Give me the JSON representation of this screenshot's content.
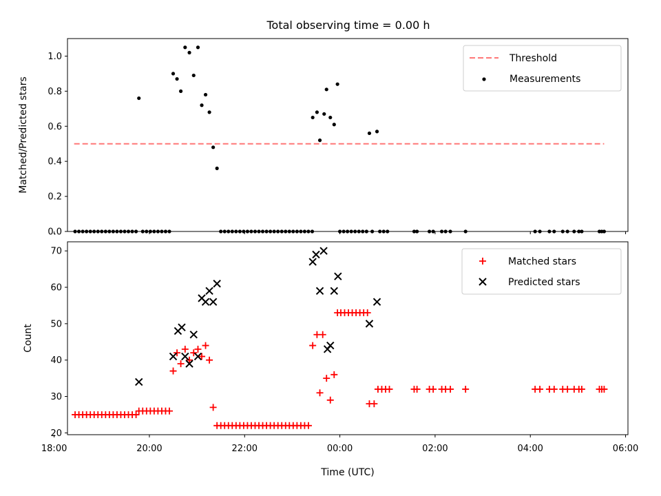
{
  "figure_title": "Total observing time = 0.00 h",
  "colors": {
    "threshold": "#ff7777",
    "measurements": "#000000",
    "matched": "#ff0000",
    "predicted": "#000000"
  },
  "chart_data": [
    {
      "type": "scatter",
      "ylabel": "Matched/Predicted stars",
      "xlim": [
        18.28,
        30.05
      ],
      "ylim": [
        0,
        1.1
      ],
      "yticks": [
        0.0,
        0.2,
        0.4,
        0.6,
        0.8,
        1.0
      ],
      "ytick_labels": [
        "0.0",
        "0.2",
        "0.4",
        "0.6",
        "0.8",
        "1.0"
      ],
      "legend": {
        "placement": "top-right",
        "entries": [
          {
            "label": "Threshold",
            "style": "dashed-line"
          },
          {
            "label": "Measurements",
            "style": "dot"
          }
        ]
      },
      "threshold": {
        "name": "Threshold",
        "y": 0.5,
        "x": [
          18.42,
          29.55
        ]
      },
      "series": [
        {
          "name": "Measurements",
          "points": [
            [
              18.44,
              0
            ],
            [
              18.52,
              0
            ],
            [
              18.6,
              0
            ],
            [
              18.68,
              0
            ],
            [
              18.76,
              0
            ],
            [
              18.84,
              0
            ],
            [
              18.92,
              0
            ],
            [
              19.0,
              0
            ],
            [
              19.08,
              0
            ],
            [
              19.16,
              0
            ],
            [
              19.24,
              0
            ],
            [
              19.32,
              0
            ],
            [
              19.4,
              0
            ],
            [
              19.48,
              0
            ],
            [
              19.56,
              0
            ],
            [
              19.64,
              0
            ],
            [
              19.72,
              0
            ],
            [
              19.78,
              0.76
            ],
            [
              19.86,
              0
            ],
            [
              19.94,
              0
            ],
            [
              20.02,
              0
            ],
            [
              20.1,
              0
            ],
            [
              20.18,
              0
            ],
            [
              20.26,
              0
            ],
            [
              20.34,
              0
            ],
            [
              20.42,
              0
            ],
            [
              20.5,
              0.9
            ],
            [
              20.58,
              0.87
            ],
            [
              20.66,
              0.8
            ],
            [
              20.75,
              1.05
            ],
            [
              20.84,
              1.02
            ],
            [
              20.93,
              0.89
            ],
            [
              21.02,
              1.05
            ],
            [
              21.1,
              0.72
            ],
            [
              21.18,
              0.78
            ],
            [
              21.26,
              0.68
            ],
            [
              21.34,
              0.48
            ],
            [
              21.42,
              0.36
            ],
            [
              21.5,
              0
            ],
            [
              21.58,
              0
            ],
            [
              21.66,
              0
            ],
            [
              21.74,
              0
            ],
            [
              21.82,
              0
            ],
            [
              21.9,
              0
            ],
            [
              21.98,
              0
            ],
            [
              22.06,
              0
            ],
            [
              22.14,
              0
            ],
            [
              22.22,
              0
            ],
            [
              22.3,
              0
            ],
            [
              22.38,
              0
            ],
            [
              22.46,
              0
            ],
            [
              22.54,
              0
            ],
            [
              22.62,
              0
            ],
            [
              22.7,
              0
            ],
            [
              22.78,
              0
            ],
            [
              22.86,
              0
            ],
            [
              22.94,
              0
            ],
            [
              23.02,
              0
            ],
            [
              23.1,
              0
            ],
            [
              23.18,
              0
            ],
            [
              23.26,
              0
            ],
            [
              23.34,
              0
            ],
            [
              23.42,
              0
            ],
            [
              23.43,
              0.65
            ],
            [
              23.52,
              0.68
            ],
            [
              23.58,
              0.52
            ],
            [
              23.67,
              0.67
            ],
            [
              23.72,
              0.81
            ],
            [
              23.8,
              0.65
            ],
            [
              23.88,
              0.61
            ],
            [
              23.95,
              0.84
            ],
            [
              24.0,
              0
            ],
            [
              24.08,
              0
            ],
            [
              24.16,
              0
            ],
            [
              24.24,
              0
            ],
            [
              24.32,
              0
            ],
            [
              24.4,
              0
            ],
            [
              24.48,
              0
            ],
            [
              24.56,
              0
            ],
            [
              24.62,
              0.56
            ],
            [
              24.78,
              0.57
            ],
            [
              24.68,
              0
            ],
            [
              24.84,
              0
            ],
            [
              24.92,
              0
            ],
            [
              25.0,
              0
            ],
            [
              25.56,
              0
            ],
            [
              25.62,
              0
            ],
            [
              25.88,
              0
            ],
            [
              25.96,
              0
            ],
            [
              26.14,
              0
            ],
            [
              26.22,
              0
            ],
            [
              26.32,
              0
            ],
            [
              26.64,
              0
            ],
            [
              28.1,
              0
            ],
            [
              28.2,
              0
            ],
            [
              28.4,
              0
            ],
            [
              28.5,
              0
            ],
            [
              28.68,
              0
            ],
            [
              28.78,
              0
            ],
            [
              28.92,
              0
            ],
            [
              29.02,
              0
            ],
            [
              29.08,
              0
            ],
            [
              29.45,
              0
            ],
            [
              29.5,
              0
            ],
            [
              29.55,
              0
            ]
          ]
        }
      ]
    },
    {
      "type": "scatter",
      "xlabel": "Time (UTC)",
      "ylabel": "Count",
      "xlim": [
        18.28,
        30.05
      ],
      "ylim": [
        19.5,
        72.5
      ],
      "yticks": [
        20,
        30,
        40,
        50,
        60,
        70
      ],
      "ytick_labels": [
        "20",
        "30",
        "40",
        "50",
        "60",
        "70"
      ],
      "xticks": [
        18,
        20,
        22,
        24,
        26,
        28,
        30
      ],
      "xtick_labels": [
        "18:00",
        "20:00",
        "22:00",
        "00:00",
        "02:00",
        "04:00",
        "06:00"
      ],
      "legend": {
        "placement": "top-right",
        "entries": [
          {
            "label": "Matched stars",
            "style": "plus"
          },
          {
            "label": "Predicted stars",
            "style": "x"
          }
        ]
      },
      "series": [
        {
          "name": "Matched stars",
          "points": [
            [
              18.44,
              25
            ],
            [
              18.52,
              25
            ],
            [
              18.6,
              25
            ],
            [
              18.68,
              25
            ],
            [
              18.76,
              25
            ],
            [
              18.84,
              25
            ],
            [
              18.92,
              25
            ],
            [
              19.0,
              25
            ],
            [
              19.08,
              25
            ],
            [
              19.16,
              25
            ],
            [
              19.24,
              25
            ],
            [
              19.32,
              25
            ],
            [
              19.4,
              25
            ],
            [
              19.48,
              25
            ],
            [
              19.56,
              25
            ],
            [
              19.64,
              25
            ],
            [
              19.72,
              25
            ],
            [
              19.78,
              26
            ],
            [
              19.86,
              26
            ],
            [
              19.94,
              26
            ],
            [
              20.02,
              26
            ],
            [
              20.1,
              26
            ],
            [
              20.18,
              26
            ],
            [
              20.26,
              26
            ],
            [
              20.34,
              26
            ],
            [
              20.42,
              26
            ],
            [
              20.5,
              37
            ],
            [
              20.58,
              42
            ],
            [
              20.66,
              39
            ],
            [
              20.75,
              43
            ],
            [
              20.84,
              40
            ],
            [
              20.93,
              42
            ],
            [
              21.02,
              43
            ],
            [
              21.1,
              41
            ],
            [
              21.18,
              44
            ],
            [
              21.26,
              40
            ],
            [
              21.34,
              27
            ],
            [
              21.42,
              22
            ],
            [
              21.5,
              22
            ],
            [
              21.58,
              22
            ],
            [
              21.66,
              22
            ],
            [
              21.74,
              22
            ],
            [
              21.82,
              22
            ],
            [
              21.9,
              22
            ],
            [
              21.98,
              22
            ],
            [
              22.06,
              22
            ],
            [
              22.14,
              22
            ],
            [
              22.22,
              22
            ],
            [
              22.3,
              22
            ],
            [
              22.38,
              22
            ],
            [
              22.46,
              22
            ],
            [
              22.54,
              22
            ],
            [
              22.62,
              22
            ],
            [
              22.7,
              22
            ],
            [
              22.78,
              22
            ],
            [
              22.86,
              22
            ],
            [
              22.94,
              22
            ],
            [
              23.02,
              22
            ],
            [
              23.1,
              22
            ],
            [
              23.18,
              22
            ],
            [
              23.26,
              22
            ],
            [
              23.34,
              22
            ],
            [
              23.43,
              44
            ],
            [
              23.52,
              47
            ],
            [
              23.58,
              31
            ],
            [
              23.64,
              47
            ],
            [
              23.72,
              35
            ],
            [
              23.8,
              29
            ],
            [
              23.88,
              36
            ],
            [
              23.95,
              53
            ],
            [
              24.02,
              53
            ],
            [
              24.1,
              53
            ],
            [
              24.18,
              53
            ],
            [
              24.26,
              53
            ],
            [
              24.34,
              53
            ],
            [
              24.42,
              53
            ],
            [
              24.5,
              53
            ],
            [
              24.58,
              53
            ],
            [
              24.62,
              28
            ],
            [
              24.72,
              28
            ],
            [
              24.8,
              32
            ],
            [
              24.88,
              32
            ],
            [
              24.96,
              32
            ],
            [
              25.04,
              32
            ],
            [
              25.56,
              32
            ],
            [
              25.62,
              32
            ],
            [
              25.88,
              32
            ],
            [
              25.96,
              32
            ],
            [
              26.14,
              32
            ],
            [
              26.22,
              32
            ],
            [
              26.32,
              32
            ],
            [
              26.64,
              32
            ],
            [
              28.1,
              32
            ],
            [
              28.2,
              32
            ],
            [
              28.4,
              32
            ],
            [
              28.5,
              32
            ],
            [
              28.68,
              32
            ],
            [
              28.78,
              32
            ],
            [
              28.92,
              32
            ],
            [
              29.02,
              32
            ],
            [
              29.08,
              32
            ],
            [
              29.45,
              32
            ],
            [
              29.5,
              32
            ],
            [
              29.55,
              32
            ]
          ]
        },
        {
          "name": "Predicted stars",
          "points": [
            [
              19.78,
              34
            ],
            [
              20.5,
              41
            ],
            [
              20.6,
              48
            ],
            [
              20.68,
              49
            ],
            [
              20.75,
              41
            ],
            [
              20.84,
              39
            ],
            [
              20.93,
              47
            ],
            [
              21.02,
              41
            ],
            [
              21.1,
              57
            ],
            [
              21.18,
              56
            ],
            [
              21.26,
              59
            ],
            [
              21.34,
              56
            ],
            [
              21.42,
              61
            ],
            [
              23.43,
              67
            ],
            [
              23.5,
              69
            ],
            [
              23.58,
              59
            ],
            [
              23.66,
              70
            ],
            [
              23.74,
              43
            ],
            [
              23.8,
              44
            ],
            [
              23.88,
              59
            ],
            [
              23.96,
              63
            ],
            [
              24.62,
              50
            ],
            [
              24.78,
              56
            ]
          ]
        }
      ]
    }
  ]
}
